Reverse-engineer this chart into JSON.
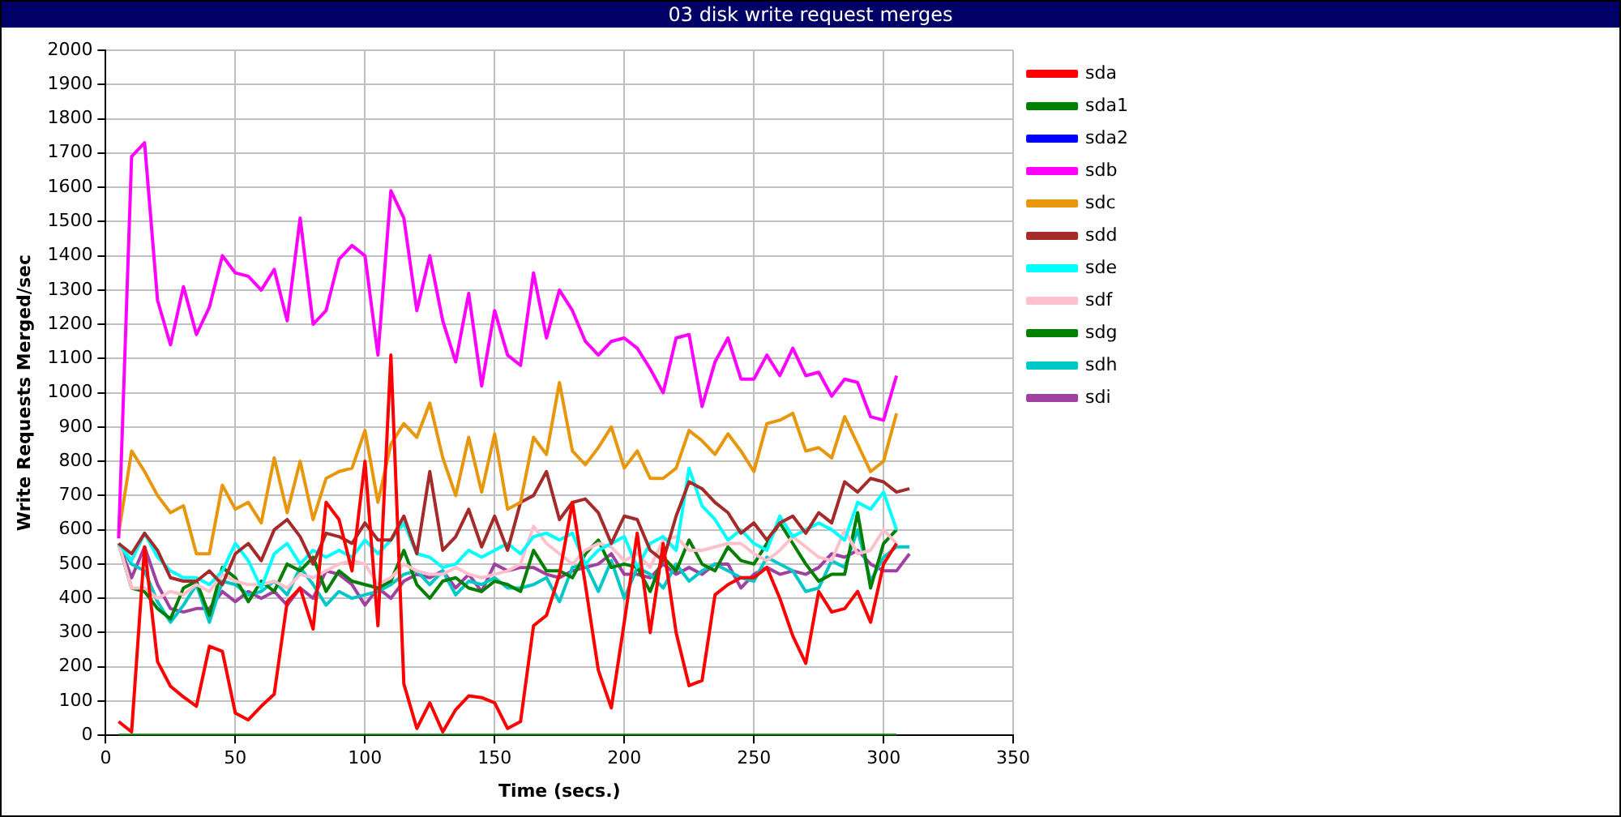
{
  "chart_data": {
    "type": "line",
    "title": "03 disk write request merges",
    "xlabel": "Time (secs.)",
    "ylabel": "Write Requests Merged/sec",
    "xlim": [
      0,
      350
    ],
    "xticks": [
      0,
      50,
      100,
      150,
      200,
      250,
      300,
      350
    ],
    "ylim": [
      0,
      2000
    ],
    "yticks": [
      0,
      100,
      200,
      300,
      400,
      500,
      600,
      700,
      800,
      900,
      1000,
      1100,
      1200,
      1300,
      1400,
      1500,
      1600,
      1700,
      1800,
      1900,
      2000
    ],
    "grid": true,
    "legend": "right",
    "marker": "none",
    "line_style": "solid",
    "x": [
      5,
      10,
      15,
      20,
      25,
      30,
      35,
      40,
      45,
      50,
      55,
      60,
      65,
      70,
      75,
      80,
      85,
      90,
      95,
      100,
      105,
      110,
      115,
      120,
      125,
      130,
      135,
      140,
      145,
      150,
      155,
      160,
      165,
      170,
      175,
      180,
      185,
      190,
      195,
      200,
      205,
      210,
      215,
      220,
      225,
      230,
      235,
      240,
      245,
      250,
      255,
      260,
      265,
      270,
      275,
      280,
      285,
      290,
      295,
      300,
      305
    ],
    "series": [
      {
        "name": "sda",
        "color": "#ff0000",
        "values": [
          40,
          10,
          550,
          215,
          143,
          112,
          85,
          260,
          245,
          65,
          45,
          85,
          120,
          390,
          430,
          310,
          680,
          630,
          480,
          800,
          320,
          1110,
          150,
          20,
          95,
          10,
          75,
          115,
          110,
          95,
          20,
          40,
          320,
          350,
          470,
          680,
          440,
          190,
          80,
          330,
          590,
          300,
          560,
          300,
          145,
          160,
          410,
          440,
          460,
          460,
          490,
          400,
          290,
          210,
          420,
          360,
          370,
          420,
          330,
          500,
          560
        ]
      },
      {
        "name": "sda1",
        "color": "#008000",
        "values": [
          0,
          0,
          0,
          0,
          0,
          0,
          0,
          0,
          0,
          0,
          0,
          0,
          0,
          0,
          0,
          0,
          0,
          0,
          0,
          0,
          0,
          0,
          0,
          0,
          0,
          0,
          0,
          0,
          0,
          0,
          0,
          0,
          0,
          0,
          0,
          0,
          0,
          0,
          0,
          0,
          0,
          0,
          0,
          0,
          0,
          0,
          0,
          0,
          0,
          0,
          0,
          0,
          0,
          0,
          0,
          0,
          0,
          0,
          0,
          0,
          0
        ]
      },
      {
        "name": "sda2",
        "color": "#0000ff",
        "values": [
          null,
          null,
          null,
          null,
          null,
          null,
          null,
          null,
          null,
          null,
          null,
          null,
          null,
          null,
          null,
          null,
          null,
          null,
          null,
          null,
          null,
          null,
          null,
          null,
          null,
          null,
          null,
          null,
          null,
          null,
          null,
          null,
          null,
          null,
          null,
          null,
          null,
          null,
          null,
          null,
          null,
          null,
          null,
          null,
          null,
          null,
          null,
          null,
          null,
          null,
          null,
          null,
          null,
          null,
          null,
          null,
          null,
          null,
          null,
          null,
          null
        ]
      },
      {
        "name": "sdb",
        "color": "#ff00ff",
        "values": [
          575,
          1690,
          1730,
          1270,
          1140,
          1310,
          1170,
          1250,
          1400,
          1350,
          1340,
          1300,
          1360,
          1210,
          1510,
          1200,
          1240,
          1390,
          1430,
          1400,
          1110,
          1590,
          1510,
          1240,
          1400,
          1210,
          1090,
          1290,
          1020,
          1240,
          1110,
          1080,
          1350,
          1160,
          1300,
          1240,
          1150,
          1110,
          1150,
          1160,
          1130,
          1070,
          1000,
          1160,
          1170,
          960,
          1090,
          1160,
          1040,
          1040,
          1110,
          1050,
          1130,
          1050,
          1060,
          990,
          1040,
          1030,
          930,
          920,
          1050
        ]
      },
      {
        "name": "sdc",
        "color": "#e8960c",
        "values": [
          590,
          830,
          770,
          700,
          650,
          670,
          530,
          530,
          730,
          660,
          680,
          620,
          810,
          650,
          800,
          630,
          750,
          770,
          780,
          890,
          680,
          850,
          910,
          870,
          970,
          810,
          700,
          870,
          710,
          880,
          660,
          680,
          870,
          820,
          1030,
          830,
          790,
          840,
          900,
          780,
          830,
          750,
          750,
          780,
          890,
          860,
          820,
          880,
          830,
          770,
          910,
          920,
          940,
          830,
          840,
          810,
          930,
          850,
          770,
          800,
          940
        ]
      },
      {
        "name": "sdd",
        "color": "#a52a2a",
        "x": [
          5,
          10,
          15,
          20,
          25,
          30,
          35,
          40,
          45,
          50,
          55,
          60,
          65,
          70,
          75,
          80,
          85,
          90,
          95,
          100,
          105,
          110,
          115,
          120,
          125,
          130,
          135,
          140,
          145,
          150,
          155,
          160,
          165,
          170,
          175,
          180,
          185,
          190,
          195,
          200,
          205,
          210,
          215,
          220,
          225,
          230,
          235,
          240,
          245,
          250,
          255,
          260,
          265,
          270,
          275,
          280,
          285,
          290,
          295,
          300,
          305,
          310
        ],
        "values": [
          560,
          530,
          590,
          540,
          460,
          450,
          450,
          480,
          440,
          530,
          560,
          510,
          600,
          630,
          580,
          500,
          590,
          580,
          560,
          620,
          570,
          570,
          640,
          530,
          770,
          540,
          580,
          660,
          550,
          640,
          540,
          680,
          700,
          770,
          630,
          680,
          690,
          650,
          560,
          640,
          630,
          540,
          510,
          640,
          740,
          720,
          680,
          650,
          590,
          620,
          570,
          620,
          640,
          590,
          650,
          620,
          740,
          710,
          750,
          740,
          710,
          720
        ]
      },
      {
        "name": "sde",
        "color": "#00ffff",
        "values": [
          560,
          510,
          590,
          520,
          480,
          460,
          460,
          440,
          480,
          560,
          510,
          430,
          530,
          560,
          500,
          540,
          520,
          540,
          520,
          570,
          530,
          570,
          620,
          530,
          520,
          490,
          500,
          540,
          520,
          540,
          560,
          530,
          580,
          590,
          570,
          590,
          500,
          540,
          560,
          580,
          490,
          560,
          580,
          540,
          780,
          670,
          630,
          570,
          600,
          560,
          540,
          640,
          580,
          600,
          620,
          600,
          570,
          680,
          660,
          710,
          600
        ]
      },
      {
        "name": "sdf",
        "color": "#ffc0cb",
        "values": [
          560,
          430,
          430,
          400,
          420,
          410,
          440,
          420,
          470,
          450,
          440,
          440,
          450,
          430,
          470,
          460,
          480,
          500,
          510,
          500,
          440,
          460,
          500,
          480,
          470,
          470,
          490,
          470,
          460,
          470,
          480,
          500,
          610,
          560,
          530,
          500,
          540,
          560,
          550,
          510,
          530,
          490,
          570,
          580,
          540,
          540,
          550,
          560,
          560,
          530,
          510,
          540,
          580,
          550,
          520,
          510,
          600,
          530,
          540,
          600,
          560
        ]
      },
      {
        "name": "sdg",
        "color": "#007f00",
        "values": [
          560,
          430,
          420,
          370,
          340,
          430,
          450,
          350,
          490,
          460,
          390,
          450,
          420,
          500,
          480,
          520,
          420,
          480,
          450,
          440,
          430,
          450,
          540,
          440,
          400,
          450,
          460,
          430,
          420,
          450,
          440,
          420,
          540,
          480,
          480,
          460,
          530,
          570,
          490,
          500,
          490,
          420,
          520,
          480,
          570,
          500,
          480,
          550,
          510,
          500,
          560,
          620,
          560,
          500,
          450,
          470,
          470,
          650,
          430,
          560,
          600
        ]
      },
      {
        "name": "sdh",
        "color": "#00c8c8",
        "x": [
          5,
          10,
          15,
          20,
          25,
          30,
          35,
          40,
          45,
          50,
          55,
          60,
          65,
          70,
          75,
          80,
          85,
          90,
          95,
          100,
          105,
          110,
          115,
          120,
          125,
          130,
          135,
          140,
          145,
          150,
          155,
          160,
          165,
          170,
          175,
          180,
          185,
          190,
          195,
          200,
          205,
          210,
          215,
          220,
          225,
          230,
          235,
          240,
          245,
          250,
          255,
          260,
          265,
          270,
          275,
          280,
          285,
          290,
          295,
          300,
          305,
          310
        ],
        "values": [
          560,
          500,
          480,
          390,
          330,
          380,
          440,
          330,
          450,
          440,
          410,
          420,
          450,
          410,
          490,
          440,
          380,
          420,
          400,
          410,
          420,
          440,
          470,
          480,
          440,
          480,
          410,
          450,
          440,
          460,
          430,
          430,
          440,
          460,
          390,
          490,
          500,
          420,
          510,
          400,
          490,
          470,
          430,
          500,
          450,
          480,
          500,
          480,
          460,
          450,
          520,
          500,
          480,
          420,
          430,
          510,
          490,
          600,
          450,
          520,
          550,
          550
        ]
      },
      {
        "name": "sdi",
        "color": "#a040a0",
        "x": [
          5,
          10,
          15,
          20,
          25,
          30,
          35,
          40,
          45,
          50,
          55,
          60,
          65,
          70,
          75,
          80,
          85,
          90,
          95,
          100,
          105,
          110,
          115,
          120,
          125,
          130,
          135,
          140,
          145,
          150,
          155,
          160,
          165,
          170,
          175,
          180,
          185,
          190,
          195,
          200,
          205,
          210,
          215,
          220,
          225,
          230,
          235,
          240,
          245,
          250,
          255,
          260,
          265,
          270,
          275,
          280,
          285,
          290,
          295,
          300,
          305,
          310
        ],
        "values": [
          560,
          460,
          550,
          440,
          370,
          360,
          370,
          370,
          420,
          390,
          420,
          400,
          420,
          380,
          430,
          400,
          480,
          470,
          440,
          380,
          430,
          400,
          450,
          470,
          460,
          480,
          430,
          470,
          420,
          500,
          480,
          490,
          490,
          470,
          460,
          480,
          490,
          500,
          530,
          470,
          470,
          460,
          500,
          470,
          490,
          470,
          500,
          500,
          430,
          470,
          490,
          470,
          480,
          470,
          490,
          530,
          520,
          540,
          500,
          480,
          480,
          530
        ]
      }
    ]
  }
}
